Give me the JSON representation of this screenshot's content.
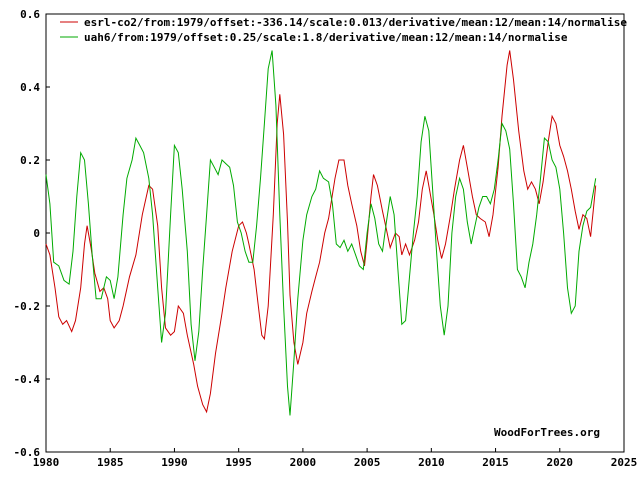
{
  "chart_data": {
    "type": "line",
    "x_axis": {
      "min": 1980,
      "max": 2025,
      "ticks": [
        1980,
        1985,
        1990,
        1995,
        2000,
        2005,
        2010,
        2015,
        2020,
        2025
      ]
    },
    "y_axis": {
      "min": -0.6,
      "max": 0.6,
      "ticks": [
        "-0.6",
        "-0.4",
        "-0.2",
        "0",
        "0.2",
        "0.4",
        "0.6"
      ]
    },
    "grid": false,
    "legend_position": "top-left",
    "credit": "WoodForTrees.org",
    "series": [
      {
        "name": "esrl-co2/from:1979/offset:-336.14/scale:0.013/derivative/mean:12/mean:14/normalise",
        "color": "#cc0000",
        "points": [
          [
            1980.0,
            -0.03
          ],
          [
            1980.3,
            -0.06
          ],
          [
            1980.7,
            -0.15
          ],
          [
            1981.0,
            -0.23
          ],
          [
            1981.3,
            -0.25
          ],
          [
            1981.6,
            -0.24
          ],
          [
            1982.0,
            -0.27
          ],
          [
            1982.3,
            -0.24
          ],
          [
            1982.7,
            -0.15
          ],
          [
            1983.0,
            -0.03
          ],
          [
            1983.2,
            0.02
          ],
          [
            1983.5,
            -0.04
          ],
          [
            1983.8,
            -0.11
          ],
          [
            1984.2,
            -0.16
          ],
          [
            1984.5,
            -0.15
          ],
          [
            1984.8,
            -0.18
          ],
          [
            1985.0,
            -0.24
          ],
          [
            1985.3,
            -0.26
          ],
          [
            1985.7,
            -0.24
          ],
          [
            1986.0,
            -0.2
          ],
          [
            1986.5,
            -0.12
          ],
          [
            1987.0,
            -0.06
          ],
          [
            1987.5,
            0.05
          ],
          [
            1988.0,
            0.13
          ],
          [
            1988.3,
            0.12
          ],
          [
            1988.7,
            0.02
          ],
          [
            1989.0,
            -0.15
          ],
          [
            1989.3,
            -0.26
          ],
          [
            1989.7,
            -0.28
          ],
          [
            1990.0,
            -0.27
          ],
          [
            1990.3,
            -0.2
          ],
          [
            1990.7,
            -0.22
          ],
          [
            1991.0,
            -0.28
          ],
          [
            1991.5,
            -0.36
          ],
          [
            1991.8,
            -0.42
          ],
          [
            1992.2,
            -0.47
          ],
          [
            1992.5,
            -0.49
          ],
          [
            1992.8,
            -0.44
          ],
          [
            1993.2,
            -0.33
          ],
          [
            1993.7,
            -0.22
          ],
          [
            1994.0,
            -0.15
          ],
          [
            1994.5,
            -0.05
          ],
          [
            1995.0,
            0.02
          ],
          [
            1995.3,
            0.03
          ],
          [
            1995.6,
            0.0
          ],
          [
            1995.8,
            -0.03
          ],
          [
            1996.2,
            -0.1
          ],
          [
            1996.5,
            -0.19
          ],
          [
            1996.8,
            -0.28
          ],
          [
            1997.0,
            -0.29
          ],
          [
            1997.3,
            -0.2
          ],
          [
            1997.7,
            0.05
          ],
          [
            1998.0,
            0.3
          ],
          [
            1998.2,
            0.38
          ],
          [
            1998.5,
            0.27
          ],
          [
            1998.8,
            0.03
          ],
          [
            1999.0,
            -0.17
          ],
          [
            1999.3,
            -0.3
          ],
          [
            1999.6,
            -0.36
          ],
          [
            2000.0,
            -0.3
          ],
          [
            2000.3,
            -0.22
          ],
          [
            2000.7,
            -0.16
          ],
          [
            2001.0,
            -0.12
          ],
          [
            2001.3,
            -0.08
          ],
          [
            2001.7,
            0.0
          ],
          [
            2002.0,
            0.04
          ],
          [
            2002.5,
            0.15
          ],
          [
            2002.8,
            0.2
          ],
          [
            2003.2,
            0.2
          ],
          [
            2003.5,
            0.13
          ],
          [
            2003.8,
            0.08
          ],
          [
            2004.2,
            0.02
          ],
          [
            2004.5,
            -0.05
          ],
          [
            2004.8,
            -0.09
          ],
          [
            2005.0,
            -0.02
          ],
          [
            2005.3,
            0.1
          ],
          [
            2005.5,
            0.16
          ],
          [
            2005.8,
            0.13
          ],
          [
            2006.2,
            0.06
          ],
          [
            2006.5,
            0.01
          ],
          [
            2006.8,
            -0.04
          ],
          [
            2007.2,
            0.0
          ],
          [
            2007.5,
            -0.01
          ],
          [
            2007.7,
            -0.06
          ],
          [
            2008.0,
            -0.03
          ],
          [
            2008.3,
            -0.06
          ],
          [
            2008.7,
            -0.02
          ],
          [
            2009.0,
            0.03
          ],
          [
            2009.3,
            0.12
          ],
          [
            2009.6,
            0.17
          ],
          [
            2009.8,
            0.13
          ],
          [
            2010.2,
            0.05
          ],
          [
            2010.5,
            -0.02
          ],
          [
            2010.8,
            -0.07
          ],
          [
            2011.1,
            -0.03
          ],
          [
            2011.5,
            0.05
          ],
          [
            2011.8,
            0.12
          ],
          [
            2012.2,
            0.2
          ],
          [
            2012.5,
            0.24
          ],
          [
            2012.8,
            0.18
          ],
          [
            2013.2,
            0.1
          ],
          [
            2013.5,
            0.05
          ],
          [
            2013.8,
            0.04
          ],
          [
            2014.2,
            0.03
          ],
          [
            2014.5,
            -0.01
          ],
          [
            2014.8,
            0.05
          ],
          [
            2015.2,
            0.18
          ],
          [
            2015.5,
            0.32
          ],
          [
            2015.9,
            0.46
          ],
          [
            2016.1,
            0.5
          ],
          [
            2016.4,
            0.42
          ],
          [
            2016.8,
            0.28
          ],
          [
            2017.2,
            0.17
          ],
          [
            2017.5,
            0.12
          ],
          [
            2017.8,
            0.14
          ],
          [
            2018.1,
            0.12
          ],
          [
            2018.4,
            0.08
          ],
          [
            2018.7,
            0.14
          ],
          [
            2019.1,
            0.25
          ],
          [
            2019.4,
            0.32
          ],
          [
            2019.7,
            0.3
          ],
          [
            2020.0,
            0.24
          ],
          [
            2020.3,
            0.21
          ],
          [
            2020.6,
            0.17
          ],
          [
            2020.9,
            0.12
          ],
          [
            2021.2,
            0.06
          ],
          [
            2021.5,
            0.01
          ],
          [
            2021.8,
            0.05
          ],
          [
            2022.1,
            0.04
          ],
          [
            2022.4,
            -0.01
          ],
          [
            2022.6,
            0.06
          ],
          [
            2022.8,
            0.13
          ]
        ]
      },
      {
        "name": "uah6/from:1979/offset:0.25/scale:1.8/derivative/mean:12/mean:14/normalise",
        "color": "#00aa00",
        "points": [
          [
            1980.0,
            0.16
          ],
          [
            1980.3,
            0.08
          ],
          [
            1980.6,
            -0.08
          ],
          [
            1981.0,
            -0.09
          ],
          [
            1981.4,
            -0.13
          ],
          [
            1981.8,
            -0.14
          ],
          [
            1982.1,
            -0.05
          ],
          [
            1982.4,
            0.1
          ],
          [
            1982.7,
            0.22
          ],
          [
            1983.0,
            0.2
          ],
          [
            1983.3,
            0.08
          ],
          [
            1983.6,
            -0.06
          ],
          [
            1983.9,
            -0.18
          ],
          [
            1984.3,
            -0.18
          ],
          [
            1984.7,
            -0.12
          ],
          [
            1985.0,
            -0.13
          ],
          [
            1985.3,
            -0.18
          ],
          [
            1985.6,
            -0.12
          ],
          [
            1986.0,
            0.05
          ],
          [
            1986.3,
            0.15
          ],
          [
            1986.7,
            0.2
          ],
          [
            1987.0,
            0.26
          ],
          [
            1987.3,
            0.24
          ],
          [
            1987.6,
            0.22
          ],
          [
            1988.0,
            0.15
          ],
          [
            1988.3,
            0.05
          ],
          [
            1988.7,
            -0.15
          ],
          [
            1989.0,
            -0.3
          ],
          [
            1989.3,
            -0.22
          ],
          [
            1989.7,
            0.05
          ],
          [
            1990.0,
            0.24
          ],
          [
            1990.3,
            0.22
          ],
          [
            1990.6,
            0.12
          ],
          [
            1991.0,
            -0.05
          ],
          [
            1991.3,
            -0.25
          ],
          [
            1991.6,
            -0.35
          ],
          [
            1991.9,
            -0.27
          ],
          [
            1992.2,
            -0.1
          ],
          [
            1992.5,
            0.05
          ],
          [
            1992.8,
            0.2
          ],
          [
            1993.1,
            0.18
          ],
          [
            1993.4,
            0.16
          ],
          [
            1993.7,
            0.2
          ],
          [
            1994.0,
            0.19
          ],
          [
            1994.3,
            0.18
          ],
          [
            1994.6,
            0.13
          ],
          [
            1994.9,
            0.03
          ],
          [
            1995.2,
            0.0
          ],
          [
            1995.5,
            -0.05
          ],
          [
            1995.8,
            -0.08
          ],
          [
            1996.1,
            -0.08
          ],
          [
            1996.4,
            0.02
          ],
          [
            1996.7,
            0.15
          ],
          [
            1997.0,
            0.3
          ],
          [
            1997.3,
            0.45
          ],
          [
            1997.6,
            0.5
          ],
          [
            1997.9,
            0.35
          ],
          [
            1998.2,
            0.05
          ],
          [
            1998.5,
            -0.2
          ],
          [
            1998.8,
            -0.42
          ],
          [
            1999.0,
            -0.5
          ],
          [
            1999.3,
            -0.35
          ],
          [
            1999.6,
            -0.18
          ],
          [
            2000.0,
            -0.02
          ],
          [
            2000.3,
            0.05
          ],
          [
            2000.7,
            0.1
          ],
          [
            2001.0,
            0.12
          ],
          [
            2001.3,
            0.17
          ],
          [
            2001.6,
            0.15
          ],
          [
            2002.0,
            0.14
          ],
          [
            2002.3,
            0.08
          ],
          [
            2002.6,
            -0.03
          ],
          [
            2002.9,
            -0.04
          ],
          [
            2003.2,
            -0.02
          ],
          [
            2003.5,
            -0.05
          ],
          [
            2003.8,
            -0.03
          ],
          [
            2004.1,
            -0.06
          ],
          [
            2004.4,
            -0.09
          ],
          [
            2004.7,
            -0.1
          ],
          [
            2005.0,
            0.0
          ],
          [
            2005.3,
            0.08
          ],
          [
            2005.6,
            0.04
          ],
          [
            2005.9,
            -0.03
          ],
          [
            2006.2,
            -0.05
          ],
          [
            2006.5,
            0.03
          ],
          [
            2006.8,
            0.1
          ],
          [
            2007.1,
            0.05
          ],
          [
            2007.4,
            -0.1
          ],
          [
            2007.7,
            -0.25
          ],
          [
            2008.0,
            -0.24
          ],
          [
            2008.3,
            -0.12
          ],
          [
            2008.6,
            0.0
          ],
          [
            2008.9,
            0.1
          ],
          [
            2009.2,
            0.25
          ],
          [
            2009.5,
            0.32
          ],
          [
            2009.8,
            0.28
          ],
          [
            2010.1,
            0.12
          ],
          [
            2010.4,
            -0.05
          ],
          [
            2010.7,
            -0.2
          ],
          [
            2011.0,
            -0.28
          ],
          [
            2011.3,
            -0.2
          ],
          [
            2011.6,
            0.0
          ],
          [
            2011.9,
            0.1
          ],
          [
            2012.2,
            0.15
          ],
          [
            2012.5,
            0.12
          ],
          [
            2012.8,
            0.03
          ],
          [
            2013.1,
            -0.03
          ],
          [
            2013.4,
            0.02
          ],
          [
            2013.7,
            0.07
          ],
          [
            2014.0,
            0.1
          ],
          [
            2014.3,
            0.1
          ],
          [
            2014.6,
            0.08
          ],
          [
            2014.9,
            0.12
          ],
          [
            2015.2,
            0.2
          ],
          [
            2015.5,
            0.3
          ],
          [
            2015.8,
            0.28
          ],
          [
            2016.1,
            0.23
          ],
          [
            2016.4,
            0.08
          ],
          [
            2016.7,
            -0.1
          ],
          [
            2017.0,
            -0.12
          ],
          [
            2017.3,
            -0.15
          ],
          [
            2017.6,
            -0.08
          ],
          [
            2017.9,
            -0.03
          ],
          [
            2018.2,
            0.05
          ],
          [
            2018.5,
            0.15
          ],
          [
            2018.8,
            0.26
          ],
          [
            2019.1,
            0.25
          ],
          [
            2019.4,
            0.2
          ],
          [
            2019.7,
            0.18
          ],
          [
            2020.0,
            0.12
          ],
          [
            2020.3,
            0.0
          ],
          [
            2020.6,
            -0.15
          ],
          [
            2020.9,
            -0.22
          ],
          [
            2021.2,
            -0.2
          ],
          [
            2021.5,
            -0.05
          ],
          [
            2021.8,
            0.02
          ],
          [
            2022.1,
            0.06
          ],
          [
            2022.4,
            0.07
          ],
          [
            2022.6,
            0.11
          ],
          [
            2022.8,
            0.15
          ]
        ]
      }
    ]
  }
}
